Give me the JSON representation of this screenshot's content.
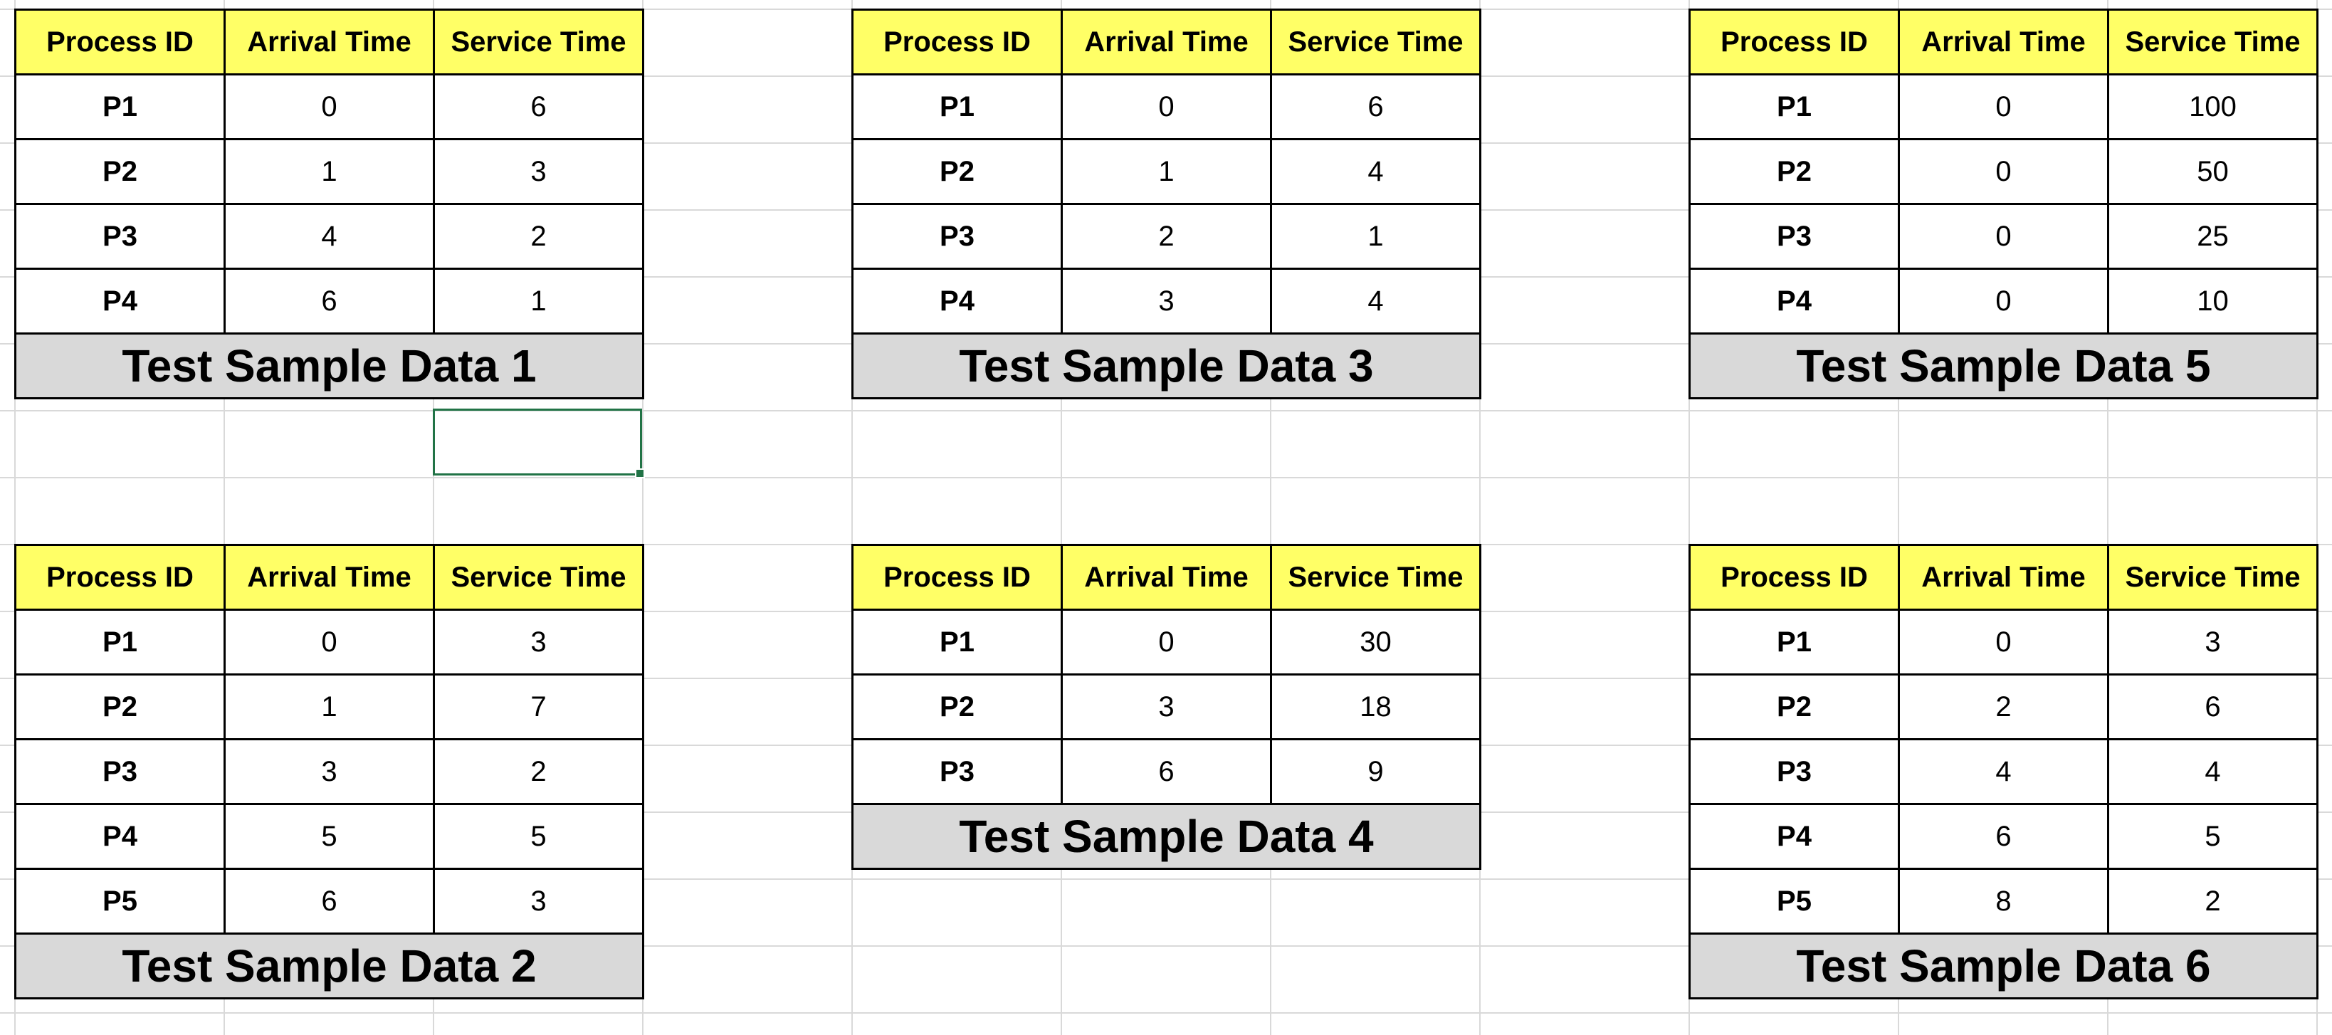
{
  "headers": {
    "process_id": "Process ID",
    "arrival_time": "Arrival Time",
    "service_time": "Service Time"
  },
  "samples": [
    {
      "caption": "Test Sample Data 1",
      "rows": [
        {
          "pid": "P1",
          "arrival": "0",
          "service": "6"
        },
        {
          "pid": "P2",
          "arrival": "1",
          "service": "3"
        },
        {
          "pid": "P3",
          "arrival": "4",
          "service": "2"
        },
        {
          "pid": "P4",
          "arrival": "6",
          "service": "1"
        }
      ]
    },
    {
      "caption": "Test Sample Data 2",
      "rows": [
        {
          "pid": "P1",
          "arrival": "0",
          "service": "3"
        },
        {
          "pid": "P2",
          "arrival": "1",
          "service": "7"
        },
        {
          "pid": "P3",
          "arrival": "3",
          "service": "2"
        },
        {
          "pid": "P4",
          "arrival": "5",
          "service": "5"
        },
        {
          "pid": "P5",
          "arrival": "6",
          "service": "3"
        }
      ]
    },
    {
      "caption": "Test Sample Data 3",
      "rows": [
        {
          "pid": "P1",
          "arrival": "0",
          "service": "6"
        },
        {
          "pid": "P2",
          "arrival": "1",
          "service": "4"
        },
        {
          "pid": "P3",
          "arrival": "2",
          "service": "1"
        },
        {
          "pid": "P4",
          "arrival": "3",
          "service": "4"
        }
      ]
    },
    {
      "caption": "Test Sample Data 4",
      "rows": [
        {
          "pid": "P1",
          "arrival": "0",
          "service": "30"
        },
        {
          "pid": "P2",
          "arrival": "3",
          "service": "18"
        },
        {
          "pid": "P3",
          "arrival": "6",
          "service": "9"
        }
      ]
    },
    {
      "caption": "Test Sample Data 5",
      "rows": [
        {
          "pid": "P1",
          "arrival": "0",
          "service": "100"
        },
        {
          "pid": "P2",
          "arrival": "0",
          "service": "50"
        },
        {
          "pid": "P3",
          "arrival": "0",
          "service": "25"
        },
        {
          "pid": "P4",
          "arrival": "0",
          "service": "10"
        }
      ]
    },
    {
      "caption": "Test Sample Data 6",
      "rows": [
        {
          "pid": "P1",
          "arrival": "0",
          "service": "3"
        },
        {
          "pid": "P2",
          "arrival": "2",
          "service": "6"
        },
        {
          "pid": "P3",
          "arrival": "4",
          "service": "4"
        },
        {
          "pid": "P4",
          "arrival": "6",
          "service": "5"
        },
        {
          "pid": "P5",
          "arrival": "8",
          "service": "2"
        }
      ]
    }
  ],
  "colors": {
    "header_bg": "#ffff66",
    "caption_bg": "#d9d9d9",
    "selection": "#217346",
    "gridline": "#d9d9d9"
  }
}
